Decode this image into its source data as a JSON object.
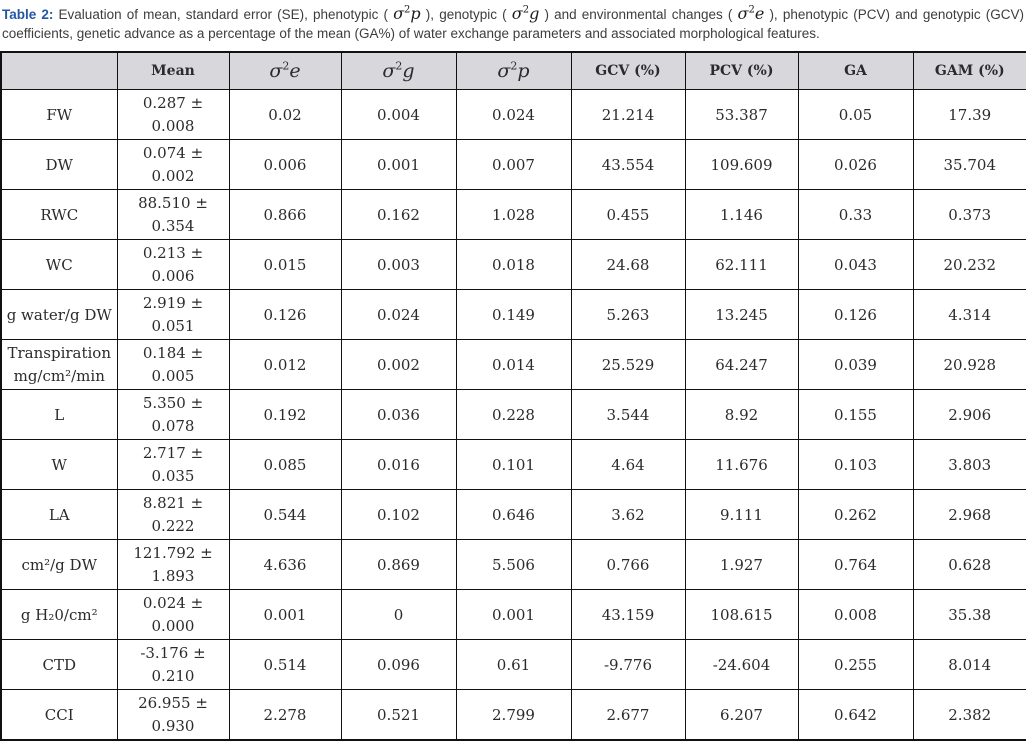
{
  "caption": {
    "label": "Table 2:",
    "seg1": " Evaluation of mean, standard error (SE), phenotypic ( ",
    "math_p": {
      "sigma": "σ",
      "sup": "2",
      "var": "p"
    },
    "seg2": " ), genotypic ( ",
    "math_g": {
      "sigma": "σ",
      "sup": "2",
      "var": "g"
    },
    "seg3": " ) and environmental changes ( ",
    "math_e": {
      "sigma": "σ",
      "sup": "2",
      "var": "e"
    },
    "seg4": " ), phenotypic (PCV) and genotypic (GCV) coefficients, genetic advance as a percentage of the mean (GA%) of water exchange parameters and associated morphological features."
  },
  "table": {
    "headers": [
      {
        "text": ""
      },
      {
        "text": "Mean"
      },
      {
        "sigma": "σ",
        "sup": "2",
        "var": "e"
      },
      {
        "sigma": "σ",
        "sup": "2",
        "var": "g"
      },
      {
        "sigma": "σ",
        "sup": "2",
        "var": "p"
      },
      {
        "text": "GCV (%)"
      },
      {
        "text": "PCV (%)"
      },
      {
        "text": "GA"
      },
      {
        "text": "GAM (%)"
      }
    ],
    "rows": [
      {
        "label": "FW",
        "mean": "0.287 ±\n0.008",
        "values": [
          "0.02",
          "0.004",
          "0.024",
          "21.214",
          "53.387",
          "0.05",
          "17.39"
        ]
      },
      {
        "label": "DW",
        "mean": "0.074 ±\n0.002",
        "values": [
          "0.006",
          "0.001",
          "0.007",
          "43.554",
          "109.609",
          "0.026",
          "35.704"
        ]
      },
      {
        "label": "RWC",
        "mean": "88.510 ±\n0.354",
        "values": [
          "0.866",
          "0.162",
          "1.028",
          "0.455",
          "1.146",
          "0.33",
          "0.373"
        ]
      },
      {
        "label": "WC",
        "mean": "0.213 ± 0.006",
        "values": [
          "0.015",
          "0.003",
          "0.018",
          "24.68",
          "62.111",
          "0.043",
          "20.232"
        ]
      },
      {
        "label": "g water/g DW",
        "mean": "2.919 ± 0.051",
        "values": [
          "0.126",
          "0.024",
          "0.149",
          "5.263",
          "13.245",
          "0.126",
          "4.314"
        ]
      },
      {
        "label": "Transpiration\nmg/cm²/min",
        "mean": "0.184 ± 0.005",
        "values": [
          "0.012",
          "0.002",
          "0.014",
          "25.529",
          "64.247",
          "0.039",
          "20.928"
        ]
      },
      {
        "label": "L",
        "mean": "5.350 ± 0.078",
        "values": [
          "0.192",
          "0.036",
          "0.228",
          "3.544",
          "8.92",
          "0.155",
          "2.906"
        ]
      },
      {
        "label": "W",
        "mean": "2.717 ± 0.035",
        "values": [
          "0.085",
          "0.016",
          "0.101",
          "4.64",
          "11.676",
          "0.103",
          "3.803"
        ]
      },
      {
        "label": "LA",
        "mean": "8.821 ± 0.222",
        "values": [
          "0.544",
          "0.102",
          "0.646",
          "3.62",
          "9.111",
          "0.262",
          "2.968"
        ]
      },
      {
        "label": "cm²/g DW",
        "mean": "121.792 ±\n1.893",
        "values": [
          "4.636",
          "0.869",
          "5.506",
          "0.766",
          "1.927",
          "0.764",
          "0.628"
        ]
      },
      {
        "label": "g H₂0/cm²",
        "mean": "0.024 ± 0.000",
        "values": [
          "0.001",
          "0",
          "0.001",
          "43.159",
          "108.615",
          "0.008",
          "35.38"
        ]
      },
      {
        "label": "CTD",
        "mean": "-3.176 ±\n0.210",
        "values": [
          "0.514",
          "0.096",
          "0.61",
          "-9.776",
          "-24.604",
          "0.255",
          "8.014"
        ]
      },
      {
        "label": "CCI",
        "mean": "26.955 ±\n0.930",
        "values": [
          "2.278",
          "0.521",
          "2.799",
          "2.677",
          "6.207",
          "0.642",
          "2.382"
        ]
      }
    ]
  },
  "colors": {
    "caption_label_blue": "#2456a4",
    "header_background": "#d8d7db",
    "border": "#111111"
  }
}
